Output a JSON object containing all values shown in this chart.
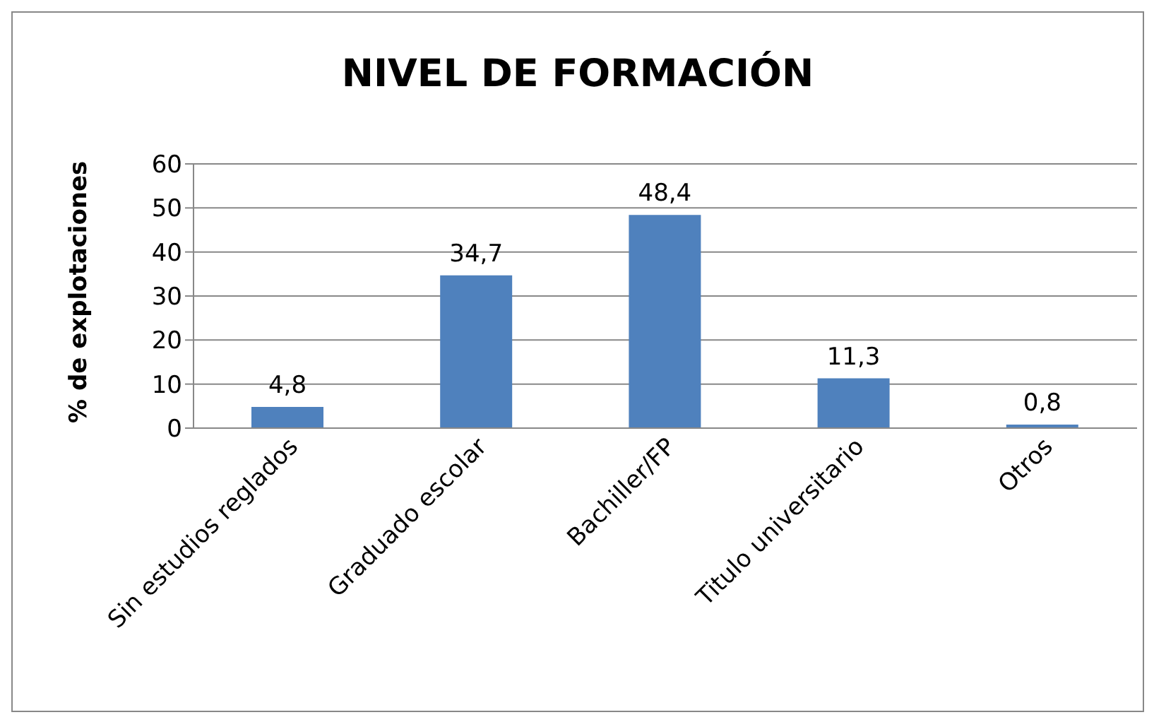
{
  "chart_data": {
    "type": "bar",
    "title": "NIVEL DE FORMACIÓN",
    "ylabel": "% de explotaciones",
    "categories": [
      "Sin estudios reglados",
      "Graduado escolar",
      "Bachiller/FP",
      "Titulo universitario",
      "Otros"
    ],
    "values": [
      4.8,
      34.7,
      48.4,
      11.3,
      0.8
    ],
    "value_labels": [
      "4,8",
      "34,7",
      "48,4",
      "11,3",
      "0,8"
    ],
    "color": "#4f81bd",
    "ylim": [
      0,
      60
    ],
    "yticks": [
      0,
      10,
      20,
      30,
      40,
      50,
      60
    ],
    "grid": "y"
  }
}
